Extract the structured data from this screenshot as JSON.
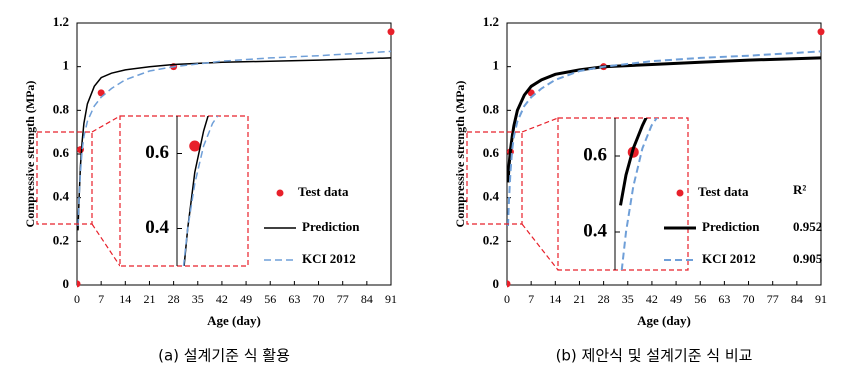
{
  "chart_data": [
    {
      "type": "line",
      "caption": "(a) 설계기준 식 활용",
      "xlabel": "Age (day)",
      "ylabel": "Compressive strength (MPa)",
      "xlim": [
        0,
        91
      ],
      "ylim": [
        0,
        1.2
      ],
      "xticks": [
        0,
        7,
        14,
        21,
        28,
        35,
        42,
        49,
        56,
        63,
        70,
        77,
        84,
        91
      ],
      "yticks": [
        0,
        0.2,
        0.4,
        0.6,
        0.8,
        1,
        1.2
      ],
      "series": [
        {
          "name": "Test data",
          "mode": "markers",
          "color": "#e8202a",
          "x": [
            0,
            1,
            7,
            28,
            91
          ],
          "values": [
            0.005,
            0.62,
            0.88,
            1.0,
            1.16
          ]
        },
        {
          "name": "Prediction",
          "mode": "line",
          "color": "#000000",
          "width": 1.5,
          "dash": false,
          "x": [
            0.3,
            0.6,
            1,
            1.5,
            2,
            3,
            5,
            7,
            10,
            14,
            21,
            28,
            42,
            56,
            70,
            91
          ],
          "values": [
            0.25,
            0.4,
            0.55,
            0.66,
            0.74,
            0.83,
            0.91,
            0.95,
            0.97,
            0.985,
            1.0,
            1.01,
            1.02,
            1.025,
            1.03,
            1.04
          ]
        },
        {
          "name": "KCI 2012",
          "mode": "line",
          "color": "#6f9fd8",
          "width": 1.5,
          "dash": true,
          "x": [
            0.3,
            0.6,
            1,
            1.5,
            2,
            3,
            5,
            7,
            10,
            14,
            21,
            28,
            42,
            56,
            70,
            91
          ],
          "values": [
            0.27,
            0.4,
            0.52,
            0.62,
            0.68,
            0.75,
            0.82,
            0.86,
            0.9,
            0.94,
            0.98,
            1.0,
            1.025,
            1.04,
            1.05,
            1.07
          ]
        }
      ],
      "inset": {
        "xlim": [
          0,
          4
        ],
        "ylim": [
          0.3,
          0.7
        ],
        "yticks": [
          0.4,
          0.6
        ]
      }
    },
    {
      "type": "line",
      "caption": "(b) 제안식 및 설계기준 식 비교",
      "xlabel": "Age (day)",
      "ylabel": "Compressive strength (MPa)",
      "xlim": [
        0,
        91
      ],
      "ylim": [
        0,
        1.2
      ],
      "xticks": [
        0,
        7,
        14,
        21,
        28,
        35,
        42,
        49,
        56,
        63,
        70,
        77,
        84,
        91
      ],
      "yticks": [
        0,
        0.2,
        0.4,
        0.6,
        0.8,
        1,
        1.2
      ],
      "r2_header": "R²",
      "series": [
        {
          "name": "Test data",
          "mode": "markers",
          "color": "#e8202a",
          "x": [
            0,
            1,
            7,
            28,
            91
          ],
          "values": [
            0.005,
            0.61,
            0.88,
            1.0,
            1.16
          ]
        },
        {
          "name": "Prediction",
          "mode": "line",
          "color": "#000000",
          "width": 3,
          "dash": false,
          "r2": 0.952,
          "x": [
            0.3,
            0.6,
            1,
            1.5,
            2,
            3,
            5,
            7,
            10,
            14,
            21,
            28,
            42,
            56,
            70,
            91
          ],
          "values": [
            0.47,
            0.55,
            0.62,
            0.68,
            0.73,
            0.8,
            0.87,
            0.91,
            0.94,
            0.965,
            0.985,
            1.0,
            1.01,
            1.02,
            1.03,
            1.04
          ]
        },
        {
          "name": "KCI 2012",
          "mode": "line",
          "color": "#6f9fd8",
          "width": 2,
          "dash": true,
          "r2": 0.905,
          "x": [
            0.3,
            0.6,
            1,
            1.5,
            2,
            3,
            5,
            7,
            10,
            14,
            21,
            28,
            42,
            56,
            70,
            91
          ],
          "values": [
            0.27,
            0.4,
            0.52,
            0.62,
            0.68,
            0.75,
            0.82,
            0.86,
            0.9,
            0.94,
            0.98,
            1.0,
            1.025,
            1.04,
            1.05,
            1.07
          ]
        }
      ],
      "inset": {
        "xlim": [
          0,
          4
        ],
        "ylim": [
          0.3,
          0.7
        ],
        "yticks": [
          0.4,
          0.6
        ]
      }
    }
  ]
}
